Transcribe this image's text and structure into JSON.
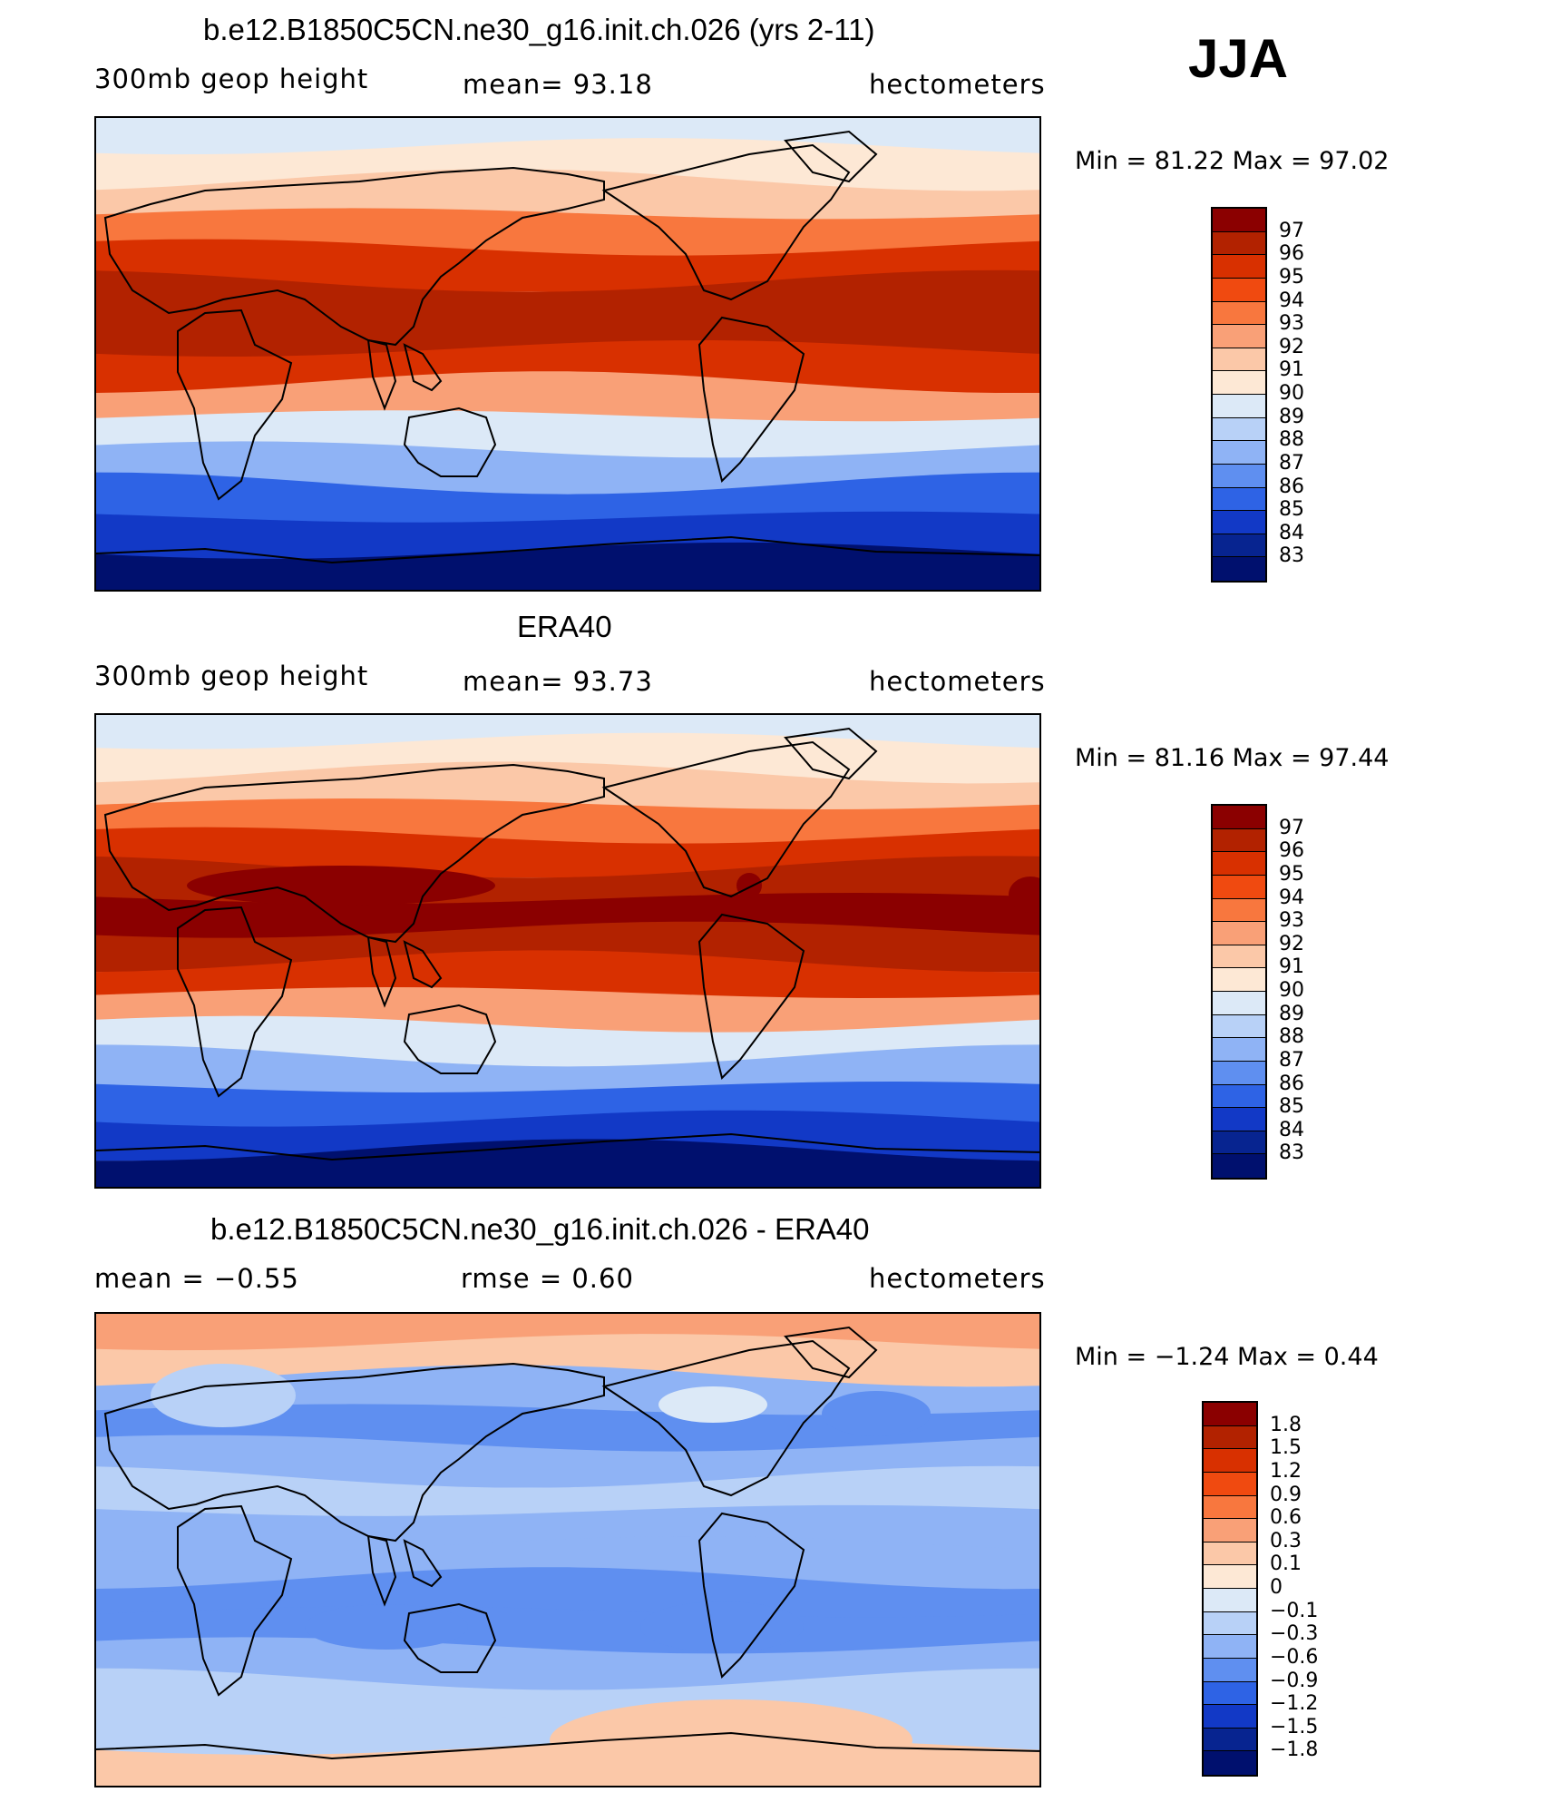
{
  "season": "JJA",
  "panels": [
    {
      "title": "b.e12.B1850C5CN.ne30_g16.init.ch.026 (yrs 2-11)",
      "left_label": "300mb geop height",
      "mid_label": "mean=  93.18",
      "right_label": "hectometers",
      "minmax": "Min =   81.22 Max =   97.02",
      "legend_labels": [
        "97",
        "96",
        "95",
        "94",
        "93",
        "92",
        "91",
        "90",
        "89",
        "88",
        "87",
        "86",
        "85",
        "84",
        "83"
      ],
      "legend_colors": [
        "#8b0000",
        "#b22200",
        "#d83000",
        "#f04a10",
        "#f8773e",
        "#f9a077",
        "#fbc8a8",
        "#fde8d5",
        "#dce9f7",
        "#b8d1f7",
        "#8fb3f5",
        "#5f8ff0",
        "#2e63e5",
        "#1239c6",
        "#072490",
        "#00106e"
      ],
      "field": {
        "bands": [
          "#dce9f7",
          "#fde8d5",
          "#fbc8a8",
          "#f8773e",
          "#d83000",
          "#b22200",
          "#b22200",
          "#d83000",
          "#f9a077",
          "#dce9f7",
          "#8fb3f5",
          "#2e63e5",
          "#1239c6",
          "#00106e"
        ]
      }
    },
    {
      "title": "ERA40",
      "left_label": "300mb geop height",
      "mid_label": "mean=  93.73",
      "right_label": "hectometers",
      "minmax": "Min =   81.16 Max =   97.44",
      "legend_labels": [
        "97",
        "96",
        "95",
        "94",
        "93",
        "92",
        "91",
        "90",
        "89",
        "88",
        "87",
        "86",
        "85",
        "84",
        "83"
      ],
      "legend_colors": [
        "#8b0000",
        "#b22200",
        "#d83000",
        "#f04a10",
        "#f8773e",
        "#f9a077",
        "#fbc8a8",
        "#fde8d5",
        "#dce9f7",
        "#b8d1f7",
        "#8fb3f5",
        "#5f8ff0",
        "#2e63e5",
        "#1239c6",
        "#072490",
        "#00106e"
      ],
      "field": {
        "bands": [
          "#dce9f7",
          "#fde8d5",
          "#fbc8a8",
          "#f8773e",
          "#d83000",
          "#b22200",
          "#8b0000",
          "#b22200",
          "#d83000",
          "#f9a077",
          "#dce9f7",
          "#8fb3f5",
          "#2e63e5",
          "#1239c6",
          "#00106e"
        ]
      }
    },
    {
      "title": "b.e12.B1850C5CN.ne30_g16.init.ch.026 - ERA40",
      "left_label": "mean =   −0.55",
      "mid_label": "rmse =    0.60",
      "right_label": "hectometers",
      "minmax": "Min =   −1.24 Max =    0.44",
      "legend_labels": [
        "1.8",
        "1.5",
        "1.2",
        "0.9",
        "0.6",
        "0.3",
        "0.1",
        "0",
        "−0.1",
        "−0.3",
        "−0.6",
        "−0.9",
        "−1.2",
        "−1.5",
        "−1.8"
      ],
      "legend_colors": [
        "#8b0000",
        "#b22200",
        "#d83000",
        "#f04a10",
        "#f8773e",
        "#f9a077",
        "#fbc8a8",
        "#fde8d5",
        "#dce9f7",
        "#b8d1f7",
        "#8fb3f5",
        "#5f8ff0",
        "#2e63e5",
        "#1239c6",
        "#072490",
        "#00106e"
      ],
      "field": {
        "bands": [
          "#f9a077",
          "#fbc8a8",
          "#8fb3f5",
          "#5f8ff0",
          "#8fb3f5",
          "#b8d1f7",
          "#8fb3f5",
          "#8fb3f5",
          "#5f8ff0",
          "#5f8ff0",
          "#8fb3f5",
          "#b8d1f7",
          "#b8d1f7",
          "#fbc8a8"
        ]
      }
    }
  ]
}
